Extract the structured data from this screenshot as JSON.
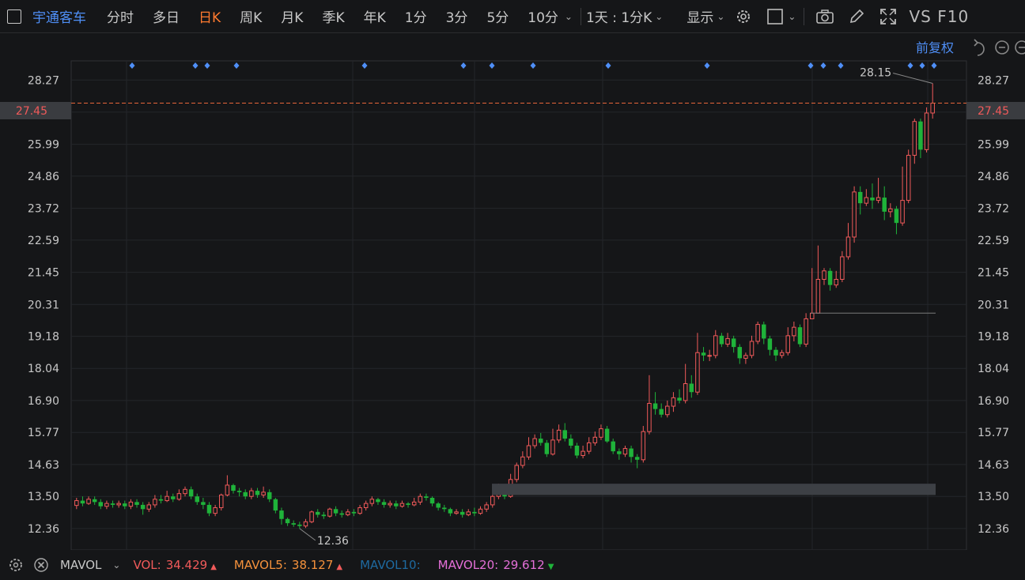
{
  "toolbar": {
    "stock_name": "宇通客车",
    "periods": [
      "分时",
      "多日",
      "日K",
      "周K",
      "月K",
      "季K",
      "年K",
      "1分",
      "3分",
      "5分",
      "10分"
    ],
    "active_period": "日K",
    "interval_select": "1天 : 1分K",
    "display_select": "显示",
    "vs_f10": "VS F10"
  },
  "chart_header": {
    "adjust_label": "前复权"
  },
  "chart_data": {
    "type": "candlestick",
    "y_ticks": [
      "28.27",
      "27.13",
      "25.99",
      "24.86",
      "23.72",
      "22.59",
      "21.45",
      "20.31",
      "19.18",
      "18.04",
      "16.90",
      "15.77",
      "14.63",
      "13.50",
      "12.36"
    ],
    "ylim": [
      11.6,
      28.95
    ],
    "current_price": "27.45",
    "max_label": "28.15",
    "min_label": "12.36",
    "max_value": 28.15,
    "min_value": 12.36,
    "horizontal_level": 20.0,
    "volume_band": [
      13.55,
      13.95
    ],
    "candles": [
      [
        13.18,
        13.35,
        13.45,
        13.05
      ],
      [
        13.35,
        13.25,
        13.5,
        13.15
      ],
      [
        13.25,
        13.4,
        13.5,
        13.2
      ],
      [
        13.4,
        13.3,
        13.5,
        13.2
      ],
      [
        13.3,
        13.15,
        13.4,
        13.05
      ],
      [
        13.15,
        13.25,
        13.35,
        13.05
      ],
      [
        13.25,
        13.2,
        13.35,
        13.1
      ],
      [
        13.2,
        13.25,
        13.35,
        13.1
      ],
      [
        13.25,
        13.15,
        13.35,
        13.05
      ],
      [
        13.15,
        13.3,
        13.4,
        13.05
      ],
      [
        13.3,
        13.2,
        13.4,
        13.1
      ],
      [
        13.2,
        13.05,
        13.3,
        12.85
      ],
      [
        13.05,
        13.2,
        13.3,
        12.95
      ],
      [
        13.2,
        13.4,
        13.55,
        13.1
      ],
      [
        13.4,
        13.35,
        13.55,
        13.25
      ],
      [
        13.35,
        13.5,
        13.7,
        13.3
      ],
      [
        13.5,
        13.4,
        13.6,
        13.3
      ],
      [
        13.4,
        13.6,
        13.75,
        13.35
      ],
      [
        13.6,
        13.75,
        13.85,
        13.5
      ],
      [
        13.75,
        13.5,
        13.85,
        13.4
      ],
      [
        13.5,
        13.3,
        13.6,
        13.2
      ],
      [
        13.3,
        13.2,
        13.45,
        13.05
      ],
      [
        13.2,
        12.9,
        13.3,
        12.8
      ],
      [
        12.9,
        13.1,
        13.2,
        12.8
      ],
      [
        13.1,
        13.55,
        13.6,
        13.0
      ],
      [
        13.55,
        13.9,
        14.25,
        13.5
      ],
      [
        13.9,
        13.7,
        13.95,
        13.6
      ],
      [
        13.7,
        13.65,
        13.8,
        13.5
      ],
      [
        13.65,
        13.5,
        13.75,
        13.4
      ],
      [
        13.5,
        13.7,
        13.8,
        13.4
      ],
      [
        13.7,
        13.55,
        13.8,
        13.45
      ],
      [
        13.55,
        13.65,
        13.85,
        13.45
      ],
      [
        13.65,
        13.4,
        13.75,
        13.3
      ],
      [
        13.4,
        13.0,
        13.45,
        12.9
      ],
      [
        13.0,
        12.7,
        13.1,
        12.5
      ],
      [
        12.7,
        12.55,
        12.75,
        12.45
      ],
      [
        12.55,
        12.5,
        12.65,
        12.42
      ],
      [
        12.5,
        12.45,
        12.6,
        12.36
      ],
      [
        12.45,
        12.6,
        12.7,
        12.38
      ],
      [
        12.6,
        12.95,
        13.0,
        12.55
      ],
      [
        12.95,
        12.85,
        13.05,
        12.75
      ],
      [
        12.85,
        12.8,
        12.95,
        12.7
      ],
      [
        12.8,
        13.05,
        13.1,
        12.75
      ],
      [
        13.05,
        12.9,
        13.15,
        12.8
      ],
      [
        12.9,
        12.85,
        13.0,
        12.75
      ],
      [
        12.85,
        12.95,
        13.05,
        12.8
      ],
      [
        12.95,
        12.9,
        13.05,
        12.8
      ],
      [
        12.9,
        13.1,
        13.2,
        12.85
      ],
      [
        13.1,
        13.25,
        13.35,
        13.0
      ],
      [
        13.25,
        13.4,
        13.5,
        13.15
      ],
      [
        13.4,
        13.3,
        13.45,
        13.2
      ],
      [
        13.3,
        13.2,
        13.4,
        13.1
      ],
      [
        13.2,
        13.25,
        13.35,
        13.1
      ],
      [
        13.25,
        13.15,
        13.35,
        13.05
      ],
      [
        13.15,
        13.25,
        13.35,
        13.1
      ],
      [
        13.25,
        13.2,
        13.3,
        13.1
      ],
      [
        13.2,
        13.3,
        13.45,
        13.15
      ],
      [
        13.3,
        13.5,
        13.6,
        13.2
      ],
      [
        13.5,
        13.45,
        13.6,
        13.35
      ],
      [
        13.45,
        13.25,
        13.5,
        13.15
      ],
      [
        13.25,
        13.1,
        13.3,
        13.0
      ],
      [
        13.1,
        13.05,
        13.2,
        12.95
      ],
      [
        13.05,
        12.9,
        13.1,
        12.8
      ],
      [
        12.9,
        12.95,
        13.05,
        12.85
      ],
      [
        12.95,
        12.85,
        13.05,
        12.75
      ],
      [
        12.85,
        12.95,
        13.05,
        12.8
      ],
      [
        12.95,
        12.9,
        13.1,
        12.8
      ],
      [
        12.9,
        13.05,
        13.15,
        12.85
      ],
      [
        13.05,
        13.2,
        13.3,
        12.95
      ],
      [
        13.2,
        13.5,
        13.6,
        13.1
      ],
      [
        13.5,
        13.8,
        13.95,
        13.4
      ],
      [
        13.8,
        13.5,
        13.9,
        13.4
      ],
      [
        13.5,
        14.1,
        14.3,
        13.45
      ],
      [
        14.1,
        14.6,
        14.7,
        14.0
      ],
      [
        14.6,
        14.9,
        15.1,
        14.5
      ],
      [
        14.9,
        15.3,
        15.6,
        14.8
      ],
      [
        15.3,
        15.55,
        15.7,
        15.2
      ],
      [
        15.55,
        15.4,
        15.75,
        15.3
      ],
      [
        15.4,
        15.0,
        15.5,
        14.9
      ],
      [
        15.0,
        15.5,
        15.9,
        14.95
      ],
      [
        15.5,
        15.85,
        16.05,
        15.4
      ],
      [
        15.85,
        15.55,
        16.1,
        15.45
      ],
      [
        15.55,
        15.3,
        15.7,
        15.2
      ],
      [
        15.3,
        14.95,
        15.4,
        14.85
      ],
      [
        14.95,
        15.1,
        15.3,
        14.85
      ],
      [
        15.1,
        15.4,
        15.6,
        15.0
      ],
      [
        15.4,
        15.6,
        15.8,
        15.3
      ],
      [
        15.6,
        15.9,
        16.05,
        15.5
      ],
      [
        15.9,
        15.45,
        16.0,
        15.4
      ],
      [
        15.45,
        15.1,
        15.55,
        15.0
      ],
      [
        15.1,
        15.0,
        15.2,
        14.8
      ],
      [
        15.0,
        15.2,
        15.3,
        14.9
      ],
      [
        15.2,
        14.9,
        15.3,
        14.7
      ],
      [
        14.9,
        14.8,
        15.0,
        14.5
      ],
      [
        14.8,
        15.8,
        16.0,
        14.7
      ],
      [
        15.8,
        16.8,
        17.8,
        15.7
      ],
      [
        16.8,
        16.6,
        17.2,
        16.4
      ],
      [
        16.6,
        16.4,
        16.8,
        16.3
      ],
      [
        16.4,
        16.7,
        16.9,
        16.3
      ],
      [
        16.7,
        17.0,
        17.2,
        16.5
      ],
      [
        17.0,
        16.9,
        17.3,
        16.8
      ],
      [
        16.9,
        17.5,
        18.2,
        16.8
      ],
      [
        17.5,
        17.2,
        17.8,
        17.0
      ],
      [
        17.2,
        18.6,
        19.3,
        17.1
      ],
      [
        18.6,
        18.5,
        18.8,
        18.3
      ],
      [
        18.5,
        18.5,
        18.7,
        18.3
      ],
      [
        18.5,
        19.2,
        19.4,
        18.4
      ],
      [
        19.2,
        18.9,
        19.3,
        18.8
      ],
      [
        18.9,
        19.1,
        19.3,
        18.8
      ],
      [
        19.1,
        18.8,
        19.2,
        18.6
      ],
      [
        18.8,
        18.4,
        18.9,
        18.2
      ],
      [
        18.4,
        18.5,
        18.6,
        18.2
      ],
      [
        18.5,
        19.0,
        19.2,
        18.4
      ],
      [
        19.0,
        19.6,
        19.7,
        18.9
      ],
      [
        19.6,
        19.1,
        19.7,
        18.9
      ],
      [
        19.1,
        18.7,
        19.2,
        18.5
      ],
      [
        18.7,
        18.5,
        18.8,
        18.3
      ],
      [
        18.5,
        18.6,
        18.7,
        18.4
      ],
      [
        18.6,
        19.2,
        19.5,
        18.5
      ],
      [
        19.2,
        19.5,
        19.7,
        19.0
      ],
      [
        19.5,
        18.9,
        19.6,
        18.8
      ],
      [
        18.9,
        19.8,
        20.0,
        18.8
      ],
      [
        19.8,
        20.0,
        21.6,
        19.8
      ],
      [
        20.0,
        21.2,
        22.4,
        20.2
      ],
      [
        21.2,
        21.5,
        21.6,
        21.0
      ],
      [
        21.5,
        21.0,
        21.6,
        20.8
      ],
      [
        21.0,
        21.2,
        21.5,
        20.9
      ],
      [
        21.2,
        22.0,
        22.2,
        21.1
      ],
      [
        22.0,
        22.7,
        23.2,
        21.9
      ],
      [
        22.7,
        24.3,
        24.5,
        22.5
      ],
      [
        24.3,
        23.9,
        24.5,
        23.5
      ],
      [
        23.9,
        24.1,
        24.4,
        23.8
      ],
      [
        24.1,
        24.0,
        24.6,
        23.7
      ],
      [
        24.0,
        24.1,
        24.8,
        23.9
      ],
      [
        24.1,
        23.6,
        24.5,
        23.3
      ],
      [
        23.6,
        23.7,
        23.9,
        23.4
      ],
      [
        23.7,
        23.2,
        23.8,
        22.8
      ],
      [
        23.2,
        24.0,
        25.2,
        23.1
      ],
      [
        24.0,
        25.6,
        25.8,
        23.9
      ],
      [
        25.6,
        26.8,
        26.9,
        25.3
      ],
      [
        26.8,
        25.8,
        26.9,
        25.5
      ],
      [
        25.8,
        27.1,
        27.3,
        25.7
      ],
      [
        27.1,
        27.45,
        28.15,
        26.9
      ]
    ]
  },
  "bottom": {
    "indicator": "MAVOL",
    "vol_label": "VOL:",
    "vol_value": "34.429",
    "mavol5_label": "MAVOL5:",
    "mavol5_value": "38.127",
    "mavol10_label": "MAVOL10:",
    "mavol20_label": "MAVOL20:",
    "mavol20_value": "29.612"
  },
  "colors": {
    "up": "#f05a5a",
    "down": "#1fb33a",
    "grid": "#24262a",
    "accent": "#4f8ff7",
    "active": "#ff7a2f",
    "price_line": "#e8663a"
  }
}
